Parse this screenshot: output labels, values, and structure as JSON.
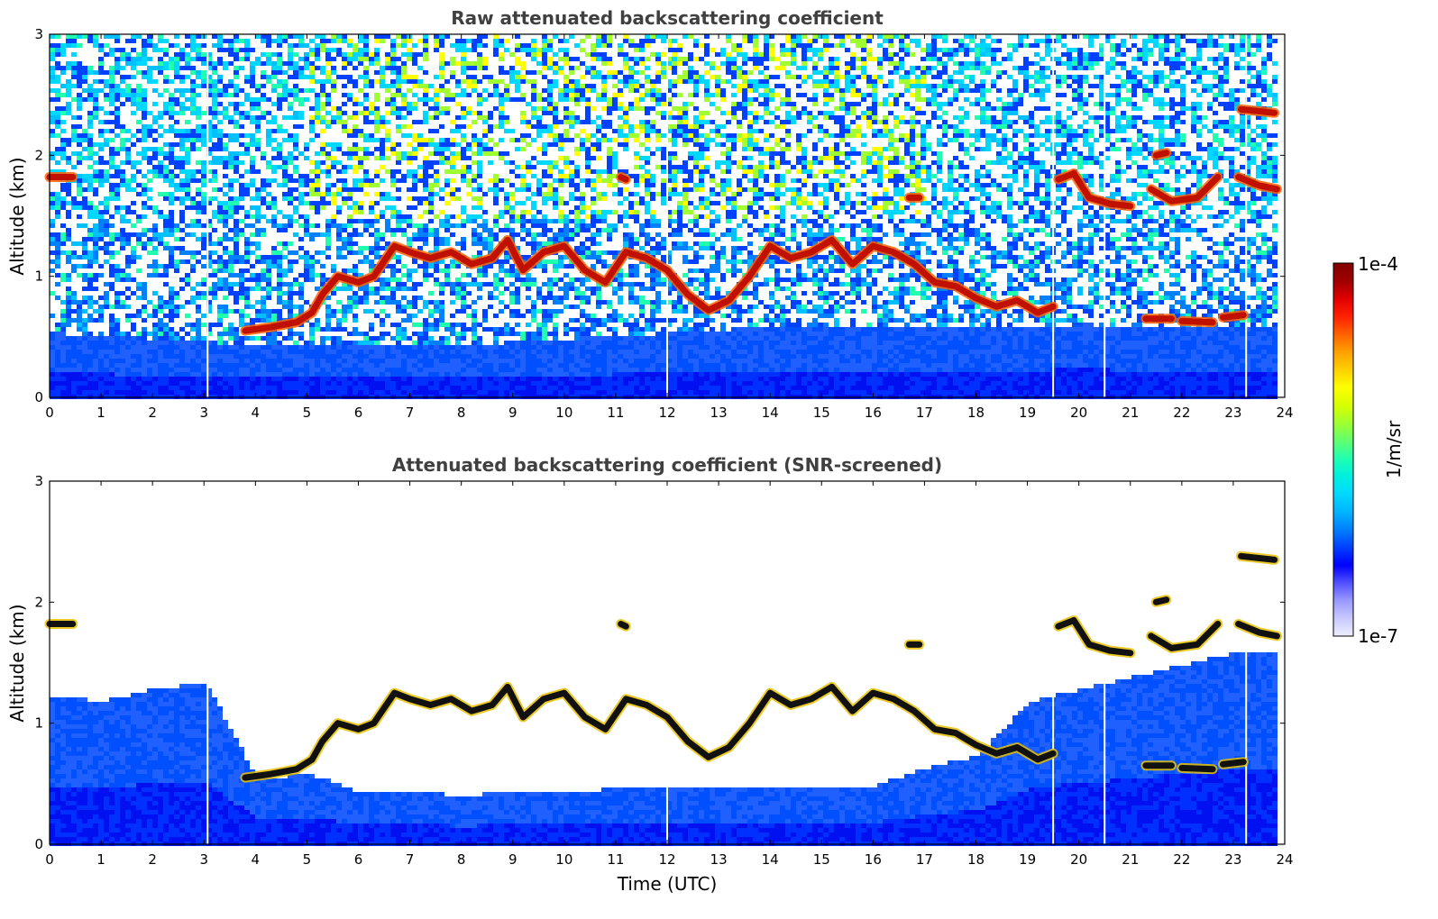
{
  "chart_data": [
    {
      "type": "heatmap",
      "title": "Raw attenuated backscattering coefficient",
      "xlabel": "",
      "ylabel": "Altitude (km)",
      "xlim": [
        0,
        24
      ],
      "ylim": [
        0,
        3
      ],
      "xticks": [
        "0",
        "1",
        "2",
        "3",
        "4",
        "5",
        "6",
        "7",
        "8",
        "9",
        "10",
        "11",
        "12",
        "13",
        "14",
        "15",
        "16",
        "17",
        "18",
        "19",
        "20",
        "21",
        "22",
        "23",
        "24"
      ],
      "yticks": [
        "0",
        "1",
        "2",
        "3"
      ],
      "noise": "heavy",
      "data_gaps_utc": [
        3.07,
        12.0,
        19.5,
        20.5,
        23.25
      ],
      "features": [
        {
          "type": "surface_layer",
          "x": [
            0,
            24
          ],
          "top": [
            0.55,
            0.5,
            0.45,
            0.45,
            0.45,
            0.5,
            0.55,
            0.6,
            0.6,
            0.6,
            0.62,
            0.6,
            0.6
          ]
        },
        {
          "type": "cloud_trace",
          "points": [
            [
              0,
              1.82
            ],
            [
              0.45,
              1.82
            ]
          ]
        },
        {
          "type": "cloud_trace",
          "points": [
            [
              3.8,
              0.55
            ],
            [
              4.3,
              0.58
            ],
            [
              4.8,
              0.62
            ],
            [
              5.1,
              0.7
            ],
            [
              5.3,
              0.85
            ],
            [
              5.6,
              1.0
            ],
            [
              6,
              0.95
            ],
            [
              6.3,
              1.0
            ],
            [
              6.7,
              1.25
            ],
            [
              7,
              1.2
            ],
            [
              7.4,
              1.15
            ],
            [
              7.8,
              1.2
            ],
            [
              8.2,
              1.1
            ],
            [
              8.6,
              1.15
            ],
            [
              8.9,
              1.3
            ],
            [
              9.2,
              1.05
            ],
            [
              9.6,
              1.2
            ],
            [
              10,
              1.25
            ],
            [
              10.4,
              1.05
            ],
            [
              10.8,
              0.95
            ],
            [
              11.2,
              1.2
            ],
            [
              11.6,
              1.15
            ],
            [
              12,
              1.05
            ],
            [
              12.4,
              0.85
            ],
            [
              12.8,
              0.72
            ],
            [
              13.2,
              0.8
            ],
            [
              13.6,
              1.0
            ],
            [
              14,
              1.25
            ],
            [
              14.4,
              1.15
            ],
            [
              14.8,
              1.2
            ],
            [
              15.2,
              1.3
            ],
            [
              15.6,
              1.1
            ],
            [
              16,
              1.25
            ],
            [
              16.4,
              1.2
            ],
            [
              16.8,
              1.1
            ],
            [
              17.2,
              0.95
            ],
            [
              17.6,
              0.92
            ],
            [
              18,
              0.82
            ],
            [
              18.4,
              0.75
            ],
            [
              18.8,
              0.8
            ],
            [
              19.2,
              0.7
            ],
            [
              19.5,
              0.75
            ]
          ]
        },
        {
          "type": "cloud_trace",
          "points": [
            [
              19.6,
              1.8
            ],
            [
              19.9,
              1.85
            ],
            [
              20.2,
              1.65
            ],
            [
              20.6,
              1.6
            ],
            [
              21,
              1.58
            ]
          ]
        },
        {
          "type": "cloud_trace",
          "points": [
            [
              21.4,
              1.72
            ],
            [
              21.8,
              1.62
            ],
            [
              22.3,
              1.65
            ],
            [
              22.7,
              1.82
            ]
          ]
        },
        {
          "type": "cloud_trace",
          "points": [
            [
              23.1,
              1.82
            ],
            [
              23.5,
              1.75
            ],
            [
              23.85,
              1.72
            ]
          ]
        },
        {
          "type": "cloud_trace",
          "points": [
            [
              23.15,
              2.38
            ],
            [
              23.8,
              2.35
            ]
          ]
        },
        {
          "type": "cloud_trace",
          "points": [
            [
              21.3,
              0.65
            ],
            [
              21.8,
              0.65
            ]
          ]
        },
        {
          "type": "cloud_trace",
          "points": [
            [
              22,
              0.63
            ],
            [
              22.6,
              0.62
            ]
          ]
        },
        {
          "type": "cloud_trace",
          "points": [
            [
              22.8,
              0.66
            ],
            [
              23.2,
              0.68
            ]
          ]
        },
        {
          "type": "cloud_trace",
          "points": [
            [
              21.5,
              2.0
            ],
            [
              21.7,
              2.02
            ]
          ]
        },
        {
          "type": "cloud_trace",
          "points": [
            [
              16.7,
              1.65
            ],
            [
              16.9,
              1.65
            ]
          ]
        },
        {
          "type": "cloud_trace",
          "points": [
            [
              11.1,
              1.82
            ],
            [
              11.2,
              1.8
            ]
          ]
        }
      ]
    },
    {
      "type": "heatmap",
      "title": "Attenuated backscattering coefficient (SNR-screened)",
      "xlabel": "Time (UTC)",
      "ylabel": "Altitude (km)",
      "xlim": [
        0,
        24
      ],
      "ylim": [
        0,
        3
      ],
      "xticks": [
        "0",
        "1",
        "2",
        "3",
        "4",
        "5",
        "6",
        "7",
        "8",
        "9",
        "10",
        "11",
        "12",
        "13",
        "14",
        "15",
        "16",
        "17",
        "18",
        "19",
        "20",
        "21",
        "22",
        "23",
        "24"
      ],
      "yticks": [
        "0",
        "1",
        "2",
        "3"
      ],
      "noise": "screened",
      "data_gaps_utc": [
        3.07,
        12.0,
        19.5,
        20.5,
        23.25
      ],
      "features": [
        {
          "type": "surface_layer",
          "x": [
            0,
            24
          ],
          "top": [
            1.25,
            1.2,
            1.3,
            1.35,
            0.55,
            0.6,
            0.45,
            0.45,
            0.42,
            0.45,
            0.45,
            0.48,
            0.5,
            0.5,
            0.5,
            0.5,
            0.5,
            0.65,
            0.75,
            1.2,
            1.3,
            1.4,
            1.5,
            1.6,
            1.6
          ]
        },
        {
          "type": "cloud_trace",
          "points": [
            [
              0,
              1.82
            ],
            [
              0.45,
              1.82
            ]
          ]
        },
        {
          "type": "cloud_trace",
          "points": [
            [
              3.8,
              0.55
            ],
            [
              4.3,
              0.58
            ],
            [
              4.8,
              0.62
            ],
            [
              5.1,
              0.7
            ],
            [
              5.3,
              0.85
            ],
            [
              5.6,
              1.0
            ],
            [
              6,
              0.95
            ],
            [
              6.3,
              1.0
            ],
            [
              6.7,
              1.25
            ],
            [
              7,
              1.2
            ],
            [
              7.4,
              1.15
            ],
            [
              7.8,
              1.2
            ],
            [
              8.2,
              1.1
            ],
            [
              8.6,
              1.15
            ],
            [
              8.9,
              1.3
            ],
            [
              9.2,
              1.05
            ],
            [
              9.6,
              1.2
            ],
            [
              10,
              1.25
            ],
            [
              10.4,
              1.05
            ],
            [
              10.8,
              0.95
            ],
            [
              11.2,
              1.2
            ],
            [
              11.6,
              1.15
            ],
            [
              12,
              1.05
            ],
            [
              12.4,
              0.85
            ],
            [
              12.8,
              0.72
            ],
            [
              13.2,
              0.8
            ],
            [
              13.6,
              1.0
            ],
            [
              14,
              1.25
            ],
            [
              14.4,
              1.15
            ],
            [
              14.8,
              1.2
            ],
            [
              15.2,
              1.3
            ],
            [
              15.6,
              1.1
            ],
            [
              16,
              1.25
            ],
            [
              16.4,
              1.2
            ],
            [
              16.8,
              1.1
            ],
            [
              17.2,
              0.95
            ],
            [
              17.6,
              0.92
            ],
            [
              18,
              0.82
            ],
            [
              18.4,
              0.75
            ],
            [
              18.8,
              0.8
            ],
            [
              19.2,
              0.7
            ],
            [
              19.5,
              0.75
            ]
          ]
        },
        {
          "type": "cloud_trace",
          "points": [
            [
              19.6,
              1.8
            ],
            [
              19.9,
              1.85
            ],
            [
              20.2,
              1.65
            ],
            [
              20.6,
              1.6
            ],
            [
              21,
              1.58
            ]
          ]
        },
        {
          "type": "cloud_trace",
          "points": [
            [
              21.4,
              1.72
            ],
            [
              21.8,
              1.62
            ],
            [
              22.3,
              1.65
            ],
            [
              22.7,
              1.82
            ]
          ]
        },
        {
          "type": "cloud_trace",
          "points": [
            [
              23.1,
              1.82
            ],
            [
              23.5,
              1.75
            ],
            [
              23.85,
              1.72
            ]
          ]
        },
        {
          "type": "cloud_trace",
          "points": [
            [
              23.15,
              2.38
            ],
            [
              23.8,
              2.35
            ]
          ]
        },
        {
          "type": "cloud_trace",
          "points": [
            [
              21.3,
              0.65
            ],
            [
              21.8,
              0.65
            ]
          ]
        },
        {
          "type": "cloud_trace",
          "points": [
            [
              22,
              0.63
            ],
            [
              22.6,
              0.62
            ]
          ]
        },
        {
          "type": "cloud_trace",
          "points": [
            [
              22.8,
              0.66
            ],
            [
              23.2,
              0.68
            ]
          ]
        },
        {
          "type": "cloud_trace",
          "points": [
            [
              21.5,
              2.0
            ],
            [
              21.7,
              2.02
            ]
          ]
        },
        {
          "type": "cloud_trace",
          "points": [
            [
              16.7,
              1.65
            ],
            [
              16.9,
              1.65
            ]
          ]
        },
        {
          "type": "cloud_trace",
          "points": [
            [
              11.1,
              1.82
            ],
            [
              11.2,
              1.8
            ]
          ]
        }
      ]
    }
  ],
  "colorbar": {
    "label": "1/m/sr",
    "max_label": "1e-4",
    "min_label": "1e-7",
    "colors": [
      "#eeeeff",
      "#c8c8ff",
      "#9a9aff",
      "#5050ff",
      "#0000ff",
      "#0040ff",
      "#0080ff",
      "#00b4ff",
      "#00d8ff",
      "#00f0e0",
      "#20ffb0",
      "#60ff70",
      "#a0ff30",
      "#d8ff00",
      "#ffff00",
      "#ffd000",
      "#ffa000",
      "#ff6000",
      "#ff2000",
      "#e00000",
      "#a00000",
      "#800000"
    ]
  }
}
